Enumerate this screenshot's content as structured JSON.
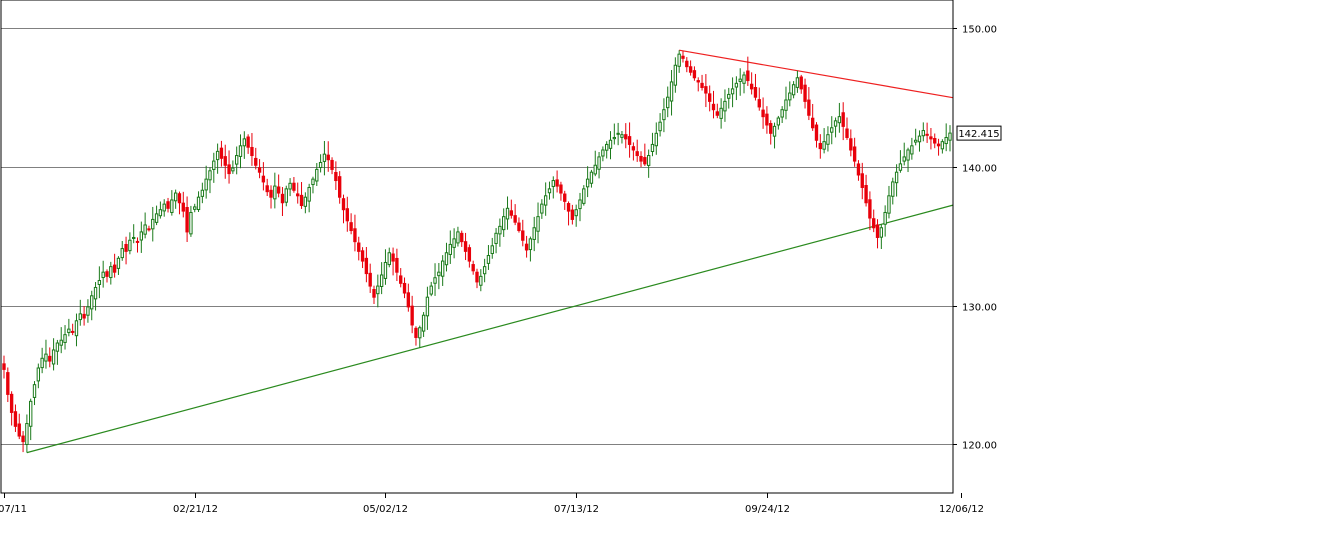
{
  "chart_data": {
    "type": "candlestick",
    "title": "",
    "xlabel": "",
    "ylabel": "",
    "ylim": [
      116.5,
      152
    ],
    "grid": true,
    "legend": "none",
    "up_color": "#1a7a1a",
    "down_color": "#e8000b",
    "y_ticks": [
      "120.00",
      "130.00",
      "140.00",
      "150.00"
    ],
    "y_tick_values": [
      120,
      130,
      140,
      150
    ],
    "x_ticks": [
      "12/07/11",
      "02/21/12",
      "05/02/12",
      "07/13/12",
      "09/24/12",
      "12/06/12"
    ],
    "x_tick_index": [
      0,
      50,
      100,
      150,
      200,
      251
    ],
    "last_price": "142.415",
    "last_price_value": 142.415,
    "closes": [
      125.4,
      123.6,
      122.3,
      121.3,
      120.6,
      120.2,
      121.5,
      123.1,
      124.3,
      125.5,
      126.2,
      126.5,
      126.0,
      126.8,
      127.3,
      127.5,
      127.9,
      128.3,
      128.1,
      128.9,
      129.4,
      129.1,
      129.9,
      130.7,
      131.3,
      131.8,
      132.4,
      132.1,
      132.8,
      132.4,
      133.4,
      134.1,
      133.9,
      134.7,
      134.9,
      134.6,
      135.3,
      135.8,
      135.5,
      136.2,
      136.6,
      136.9,
      137.3,
      137.0,
      137.6,
      138.1,
      137.4,
      136.8,
      135.3,
      136.7,
      137.1,
      137.8,
      138.3,
      139.1,
      139.7,
      140.4,
      141.1,
      140.6,
      140.1,
      139.5,
      139.9,
      140.8,
      141.5,
      142.0,
      141.4,
      140.8,
      140.1,
      139.6,
      138.9,
      138.2,
      137.8,
      138.6,
      138.1,
      137.4,
      138.4,
      138.8,
      138.3,
      137.9,
      137.2,
      137.8,
      138.5,
      139.1,
      139.8,
      140.3,
      140.9,
      140.5,
      139.8,
      139.0,
      137.8,
      136.9,
      136.1,
      135.4,
      134.6,
      133.9,
      133.2,
      132.3,
      131.4,
      130.6,
      131.4,
      132.2,
      133.1,
      133.8,
      133.2,
      132.4,
      131.6,
      130.9,
      129.9,
      128.6,
      127.7,
      128.4,
      129.3,
      130.6,
      131.4,
      132.0,
      132.4,
      133.2,
      133.8,
      134.4,
      134.8,
      135.3,
      134.6,
      133.9,
      133.2,
      132.5,
      131.7,
      132.1,
      132.8,
      133.6,
      134.3,
      135.2,
      135.7,
      136.4,
      137.0,
      136.5,
      136.0,
      135.4,
      134.7,
      134.0,
      134.8,
      135.6,
      136.4,
      137.3,
      137.9,
      138.4,
      139.0,
      138.6,
      138.1,
      137.5,
      136.8,
      136.2,
      136.9,
      137.6,
      138.4,
      139.1,
      139.6,
      140.1,
      140.7,
      141.2,
      141.6,
      141.9,
      142.1,
      142.4,
      142.3,
      142.0,
      141.6,
      141.2,
      140.8,
      140.4,
      140.2,
      140.8,
      141.6,
      142.4,
      143.2,
      144.1,
      145.0,
      146.1,
      147.3,
      148.1,
      147.8,
      147.2,
      146.8,
      146.4,
      146.1,
      145.7,
      145.3,
      144.7,
      144.1,
      143.7,
      144.2,
      144.7,
      145.2,
      145.6,
      146.0,
      146.3,
      146.6,
      146.2,
      145.6,
      145.0,
      144.3,
      143.6,
      143.0,
      142.4,
      142.9,
      143.5,
      144.1,
      144.8,
      145.3,
      145.9,
      146.4,
      145.6,
      144.7,
      143.7,
      142.8,
      141.9,
      141.3,
      141.8,
      142.3,
      142.8,
      143.3,
      143.6,
      142.9,
      142.1,
      141.2,
      140.4,
      139.4,
      138.5,
      137.4,
      136.3,
      135.6,
      134.9,
      135.6,
      136.7,
      137.9,
      138.9,
      139.6,
      140.2,
      140.7,
      141.2,
      141.5,
      141.9,
      142.2,
      142.6,
      142.3,
      142.0,
      141.7,
      141.5,
      141.8,
      142.1,
      142.415
    ]
  }
}
